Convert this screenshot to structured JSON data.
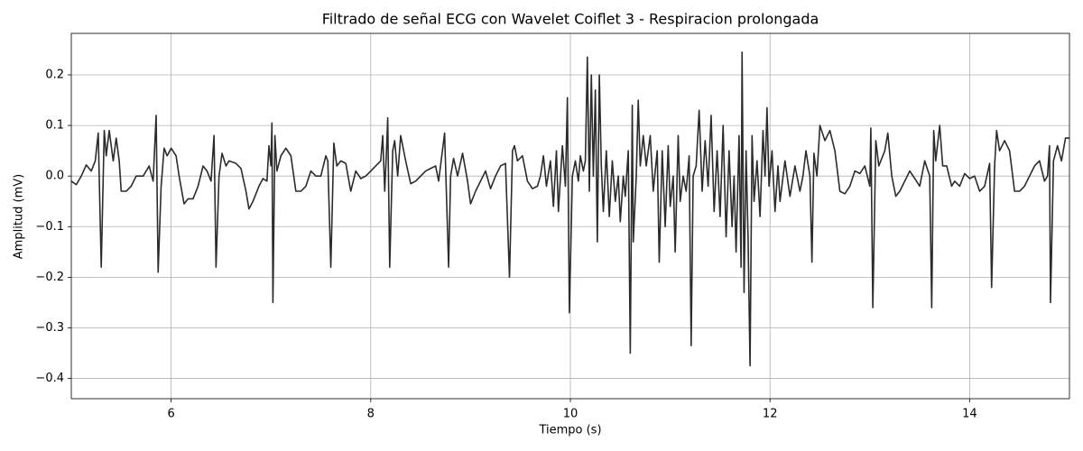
{
  "chart_data": {
    "type": "line",
    "title": "Filtrado de señal ECG con Wavelet Coiflet 3 - Respiracion prolongada",
    "x_label": "Tiempo (s)",
    "y_label": "Amplitud (mV)",
    "color": "#2b2b2b",
    "grid": true,
    "xlim": [
      5,
      15
    ],
    "ylim": [
      -0.44,
      0.282
    ],
    "xticks": [
      6,
      8,
      10,
      12,
      14
    ],
    "yticks": [
      {
        "value": -0.4,
        "label": "−0.4"
      },
      {
        "value": -0.3,
        "label": "−0.3"
      },
      {
        "value": -0.2,
        "label": "−0.2"
      },
      {
        "value": -0.1,
        "label": "−0.1"
      },
      {
        "value": 0,
        "label": "0.0"
      },
      0.1,
      0.2
    ],
    "x": [
      5.0,
      5.05,
      5.1,
      5.15,
      5.2,
      5.24,
      5.27,
      5.3,
      5.33,
      5.35,
      5.38,
      5.42,
      5.45,
      5.48,
      5.5,
      5.55,
      5.6,
      5.65,
      5.72,
      5.78,
      5.82,
      5.85,
      5.87,
      5.9,
      5.93,
      5.96,
      6.0,
      6.05,
      6.08,
      6.13,
      6.17,
      6.22,
      6.27,
      6.32,
      6.36,
      6.4,
      6.43,
      6.45,
      6.48,
      6.51,
      6.55,
      6.58,
      6.65,
      6.7,
      6.75,
      6.78,
      6.82,
      6.88,
      6.92,
      6.96,
      6.98,
      7.0,
      7.01,
      7.02,
      7.04,
      7.06,
      7.1,
      7.15,
      7.2,
      7.25,
      7.3,
      7.35,
      7.4,
      7.45,
      7.5,
      7.55,
      7.57,
      7.6,
      7.63,
      7.66,
      7.7,
      7.75,
      7.8,
      7.85,
      7.9,
      7.95,
      8.0,
      8.05,
      8.1,
      8.12,
      8.14,
      8.16,
      8.17,
      8.19,
      8.22,
      8.24,
      8.27,
      8.3,
      8.35,
      8.4,
      8.45,
      8.5,
      8.55,
      8.6,
      8.65,
      8.68,
      8.74,
      8.78,
      8.8,
      8.83,
      8.87,
      8.92,
      8.97,
      9.0,
      9.05,
      9.1,
      9.15,
      9.2,
      9.25,
      9.3,
      9.35,
      9.39,
      9.42,
      9.44,
      9.47,
      9.52,
      9.57,
      9.62,
      9.67,
      9.7,
      9.73,
      9.76,
      9.8,
      9.83,
      9.86,
      9.88,
      9.92,
      9.95,
      9.97,
      9.99,
      10.02,
      10.05,
      10.08,
      10.1,
      10.13,
      10.15,
      10.17,
      10.19,
      10.21,
      10.23,
      10.25,
      10.27,
      10.29,
      10.31,
      10.33,
      10.36,
      10.39,
      10.42,
      10.45,
      10.48,
      10.5,
      10.53,
      10.55,
      10.58,
      10.6,
      10.62,
      10.63,
      10.66,
      10.68,
      10.7,
      10.73,
      10.76,
      10.8,
      10.83,
      10.87,
      10.89,
      10.92,
      10.95,
      10.98,
      11.0,
      11.03,
      11.05,
      11.08,
      11.1,
      11.13,
      11.16,
      11.19,
      11.21,
      11.23,
      11.26,
      11.29,
      11.32,
      11.35,
      11.38,
      11.41,
      11.44,
      11.47,
      11.5,
      11.53,
      11.56,
      11.59,
      11.62,
      11.64,
      11.66,
      11.69,
      11.71,
      11.72,
      11.74,
      11.76,
      11.78,
      11.8,
      11.82,
      11.84,
      11.87,
      11.9,
      11.93,
      11.95,
      11.97,
      11.99,
      12.02,
      12.05,
      12.08,
      12.1,
      12.15,
      12.2,
      12.25,
      12.3,
      12.33,
      12.36,
      12.4,
      12.42,
      12.44,
      12.47,
      12.5,
      12.55,
      12.6,
      12.65,
      12.7,
      12.75,
      12.8,
      12.85,
      12.9,
      12.95,
      13.0,
      13.01,
      13.03,
      13.06,
      13.09,
      13.15,
      13.18,
      13.22,
      13.26,
      13.3,
      13.35,
      13.4,
      13.45,
      13.5,
      13.55,
      13.6,
      13.62,
      13.64,
      13.66,
      13.7,
      13.73,
      13.77,
      13.82,
      13.85,
      13.9,
      13.95,
      14.0,
      14.05,
      14.1,
      14.15,
      14.2,
      14.22,
      14.25,
      14.27,
      14.3,
      14.35,
      14.4,
      14.45,
      14.5,
      14.55,
      14.6,
      14.65,
      14.7,
      14.75,
      14.78,
      14.8,
      14.81,
      14.84,
      14.88,
      14.92,
      14.96,
      15.0
    ],
    "values": [
      -0.01,
      -0.017,
      0.0,
      0.022,
      0.01,
      0.03,
      0.085,
      -0.18,
      0.09,
      0.04,
      0.09,
      0.03,
      0.075,
      0.03,
      -0.03,
      -0.03,
      -0.02,
      0.0,
      0.0,
      0.02,
      -0.01,
      0.12,
      -0.19,
      -0.02,
      0.055,
      0.04,
      0.055,
      0.04,
      0.0,
      -0.055,
      -0.045,
      -0.045,
      -0.02,
      0.02,
      0.01,
      -0.01,
      0.08,
      -0.18,
      0.0,
      0.045,
      0.02,
      0.03,
      0.025,
      0.015,
      -0.03,
      -0.065,
      -0.05,
      -0.02,
      -0.005,
      -0.01,
      0.06,
      0.02,
      0.105,
      -0.25,
      0.08,
      0.01,
      0.04,
      0.055,
      0.04,
      -0.03,
      -0.03,
      -0.02,
      0.01,
      0.0,
      0.0,
      0.04,
      0.03,
      -0.18,
      0.065,
      0.02,
      0.03,
      0.025,
      -0.03,
      0.01,
      -0.005,
      0.0,
      0.01,
      0.02,
      0.03,
      0.08,
      -0.03,
      0.06,
      0.115,
      -0.18,
      0.05,
      0.07,
      0.0,
      0.08,
      0.03,
      -0.015,
      -0.01,
      0.0,
      0.01,
      0.015,
      0.02,
      -0.01,
      0.085,
      -0.18,
      0.0,
      0.035,
      0.0,
      0.045,
      -0.01,
      -0.055,
      -0.03,
      -0.01,
      0.01,
      -0.025,
      0.0,
      0.02,
      0.025,
      -0.2,
      0.05,
      0.06,
      0.03,
      0.04,
      -0.01,
      -0.025,
      -0.02,
      0.0,
      0.04,
      -0.02,
      0.03,
      -0.06,
      0.05,
      -0.07,
      0.06,
      -0.02,
      0.155,
      -0.27,
      0.0,
      0.03,
      -0.01,
      0.04,
      0.01,
      0.03,
      0.235,
      -0.03,
      0.2,
      0.0,
      0.17,
      -0.13,
      0.2,
      0.02,
      -0.07,
      0.05,
      -0.08,
      0.03,
      -0.05,
      0.0,
      -0.09,
      0.0,
      -0.04,
      0.05,
      -0.35,
      0.14,
      -0.13,
      0.0,
      0.15,
      0.02,
      0.08,
      0.02,
      0.08,
      -0.03,
      0.05,
      -0.17,
      0.05,
      -0.1,
      0.06,
      -0.06,
      0.0,
      -0.15,
      0.08,
      -0.05,
      0.0,
      -0.03,
      0.04,
      -0.335,
      0.0,
      0.02,
      0.13,
      -0.03,
      0.07,
      -0.02,
      0.12,
      -0.07,
      0.05,
      -0.08,
      0.1,
      -0.12,
      0.05,
      -0.1,
      0.0,
      -0.15,
      0.08,
      -0.18,
      0.245,
      -0.23,
      0.05,
      -0.12,
      -0.375,
      0.08,
      -0.05,
      0.03,
      -0.08,
      0.09,
      0.0,
      0.135,
      -0.02,
      0.05,
      -0.07,
      0.02,
      -0.05,
      0.03,
      -0.04,
      0.02,
      -0.03,
      0.0,
      0.05,
      0.0,
      -0.17,
      0.045,
      0.0,
      0.1,
      0.07,
      0.09,
      0.05,
      -0.03,
      -0.035,
      -0.02,
      0.01,
      0.005,
      0.02,
      -0.02,
      0.095,
      -0.26,
      0.07,
      0.02,
      0.05,
      0.085,
      0.0,
      -0.04,
      -0.03,
      -0.01,
      0.01,
      -0.005,
      -0.02,
      0.03,
      0.0,
      -0.26,
      0.09,
      0.03,
      0.1,
      0.02,
      0.02,
      -0.02,
      -0.01,
      -0.02,
      0.005,
      -0.005,
      0.0,
      -0.03,
      -0.02,
      0.025,
      -0.22,
      0.02,
      0.09,
      0.05,
      0.07,
      0.05,
      -0.03,
      -0.03,
      -0.02,
      0.0,
      0.02,
      0.03,
      -0.01,
      0.0,
      0.06,
      -0.25,
      0.03,
      0.06,
      0.03,
      0.075,
      0.075
    ]
  }
}
